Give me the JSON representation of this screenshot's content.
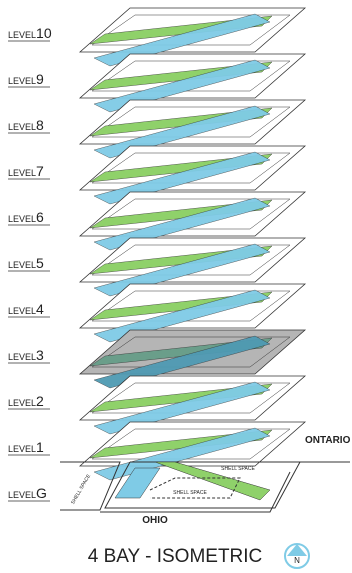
{
  "levels": [
    {
      "prefix": "LEVEL",
      "number": "10"
    },
    {
      "prefix": "LEVEL",
      "number": "9"
    },
    {
      "prefix": "LEVEL",
      "number": "8"
    },
    {
      "prefix": "LEVEL",
      "number": "7"
    },
    {
      "prefix": "LEVEL",
      "number": "6"
    },
    {
      "prefix": "LEVEL",
      "number": "5"
    },
    {
      "prefix": "LEVEL",
      "number": "4"
    },
    {
      "prefix": "LEVEL",
      "number": "3"
    },
    {
      "prefix": "LEVEL",
      "number": "2"
    },
    {
      "prefix": "LEVEL",
      "number": "1"
    },
    {
      "prefix": "LEVEL",
      "number": "G"
    }
  ],
  "streets": {
    "east": "ONTARIO",
    "south": "OHIO"
  },
  "shell_space": [
    "SHELL SPACE",
    "SHELL SPACE",
    "SHELL SPACE"
  ],
  "title": "4 BAY - ISOMETRIC",
  "north": "N"
}
